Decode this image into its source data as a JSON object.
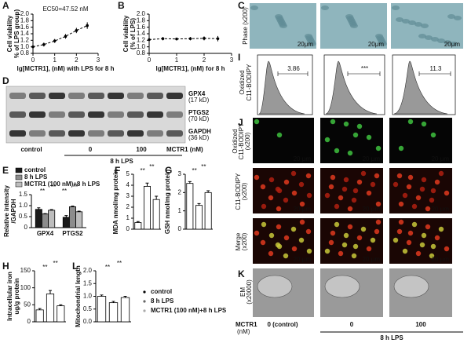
{
  "chart_data": [
    {
      "type": "line",
      "panel": "A",
      "title": "EC50=47.52 nM",
      "y_label": [
        "Cell viability",
        "% of LPS group)"
      ],
      "x_label": "lg[MCTR1], (nM) with LPS for 8 h",
      "x": [
        0,
        0.5,
        1,
        1.5,
        2,
        2.5
      ],
      "values": [
        1.0,
        1.07,
        1.18,
        1.32,
        1.5,
        1.65
      ],
      "errors": [
        0.03,
        0.06,
        0.06,
        0.07,
        0.08,
        0.1
      ],
      "color": "#000000",
      "xlim": [
        0,
        3
      ],
      "xticks": [
        0,
        1,
        2,
        3
      ],
      "ylim": [
        0.8,
        2.0
      ],
      "yticks": [
        0.8,
        {
          "value": 1,
          "label": "1.0"
        },
        1.2,
        1.4,
        1.6,
        1.8,
        {
          "value": 2,
          "label": "2.0"
        }
      ]
    },
    {
      "type": "line",
      "panel": "B",
      "y_label": [
        "Cell viability",
        "(% of LPS)"
      ],
      "x_label": "lg[MCTR1], (nM) for 8 h",
      "x": [
        0,
        0.5,
        1,
        1.5,
        2,
        2.5
      ],
      "values": [
        1.22,
        1.25,
        1.24,
        1.25,
        1.26,
        1.25
      ],
      "errors": [
        0.05,
        0.05,
        0.04,
        0.05,
        0.06,
        0.08
      ],
      "color": "#000000",
      "xlim": [
        0,
        3
      ],
      "xticks": [
        0,
        1,
        2,
        3
      ],
      "ylim": [
        0.8,
        2.0
      ],
      "yticks": [
        0.8,
        {
          "value": 1,
          "label": "1.0"
        },
        1.2,
        1.4,
        1.6,
        1.8,
        {
          "value": 2,
          "label": "2.0"
        }
      ]
    },
    {
      "type": "bar",
      "panel": "E",
      "y_label": [
        "Relative intensity",
        "/GAPDH"
      ],
      "categories": [
        "GPX4",
        "PTGS2"
      ],
      "series": [
        {
          "name": "control",
          "color": "#1a1a1a",
          "values": [
            0.83,
            0.47
          ],
          "errors": [
            0.07,
            0.08
          ]
        },
        {
          "name": "8 h LPS",
          "color": "#8c8c8c",
          "values": [
            0.62,
            0.95
          ],
          "errors": [
            0.02,
            0.03
          ]
        },
        {
          "name": "MCTR1 (100 nM)+8 h LPS",
          "color": "#bdbdbd",
          "values": [
            0.79,
            0.72
          ],
          "errors": [
            0.03,
            0.03
          ]
        }
      ],
      "ylim": [
        0,
        1.5
      ],
      "yticks": [
        0,
        0.5,
        {
          "value": 1,
          "label": "1.0"
        },
        1.5
      ],
      "annotations": [
        "**",
        "**",
        "**",
        "**"
      ]
    },
    {
      "type": "bar",
      "panel": "F",
      "y_label": [
        "MDA nmol/mg protein"
      ],
      "categories": [
        null,
        null,
        null
      ],
      "values": [
        0.6,
        3.9,
        2.7
      ],
      "errors": [
        0.1,
        0.3,
        0.3
      ],
      "color": "#ffffff",
      "ylim": [
        0,
        5
      ],
      "yticks": [
        0,
        1,
        2,
        3,
        4,
        5
      ],
      "annotations": [
        "**",
        "**"
      ]
    },
    {
      "type": "bar",
      "panel": "G",
      "y_label": [
        "GSH nmol/mg protein"
      ],
      "categories": [
        null,
        null,
        null
      ],
      "values": [
        2.5,
        1.3,
        2.0
      ],
      "errors": [
        0.1,
        0.1,
        0.1
      ],
      "color": "#ffffff",
      "ylim": [
        0,
        3
      ],
      "yticks": [
        0,
        1,
        2,
        3
      ],
      "annotations": [
        "**",
        "**"
      ]
    },
    {
      "type": "bar",
      "panel": "H",
      "y_label": [
        "Intracellular iron",
        "ug/g protein"
      ],
      "categories": [
        null,
        null,
        null
      ],
      "values": [
        35,
        82,
        47
      ],
      "errors": [
        4,
        10,
        3
      ],
      "color": "#ffffff",
      "ylim": [
        0,
        150
      ],
      "yticks": [
        0,
        50,
        100,
        150
      ],
      "annotations": [
        "**",
        "**"
      ]
    },
    {
      "type": "bar",
      "panel": "L",
      "y_label": [
        "Mitochondrial length"
      ],
      "categories": [
        null,
        null,
        null
      ],
      "values": [
        1.0,
        0.75,
        0.95
      ],
      "errors": [
        0.05,
        0.05,
        0.05
      ],
      "color": "#ffffff",
      "ylim": [
        0,
        2
      ],
      "yticks": [
        {
          "value": 0,
          "label": "0.0"
        },
        0.5,
        {
          "value": 1,
          "label": "1.0"
        },
        1.5,
        {
          "value": 2,
          "label": "2.0"
        }
      ],
      "annotations": [
        "**",
        "**"
      ],
      "legend": [
        "control",
        "8 h LPS",
        "MCTR1 (100 nM)+8 h LPS"
      ]
    }
  ],
  "panels": {
    "C": {
      "label": "C",
      "row_label": "Phase (x200)",
      "scale_bars": [
        "20μm",
        "20μm",
        "20μm"
      ]
    },
    "D": {
      "label": "D",
      "bands": [
        [
          "GPX4",
          "(17 kD)"
        ],
        [
          "PTGS2",
          "(70 kD)"
        ],
        [
          "GAPDH",
          "(36 kD)"
        ]
      ],
      "groups": [
        "control",
        "0",
        "100"
      ],
      "axis_label": "MCTR1 (nM)",
      "treatment": "8 h LPS"
    },
    "I": {
      "label": "I",
      "row_label": [
        "Oxidized",
        "C11-BODIPY"
      ],
      "gates": [
        "3.86",
        "***",
        "11.3"
      ]
    },
    "J": {
      "label": "J",
      "row_labels": [
        [
          "Oxidized",
          "C11-BODIPY",
          "(x200)"
        ],
        [
          "C11-BODIPY",
          "(x200)"
        ],
        [
          "Merge",
          "(x200)"
        ]
      ],
      "scale_bars": [
        "20 μm",
        "20 μm",
        "20 μm"
      ]
    },
    "K": {
      "label": "K",
      "row_label": [
        "EM",
        "(x20000)"
      ]
    }
  },
  "footer": {
    "axis_label": "MCTR1",
    "unit": "(nM)",
    "groups": [
      "0 (control)",
      "0",
      "100"
    ],
    "treatment": "8 h LPS"
  }
}
